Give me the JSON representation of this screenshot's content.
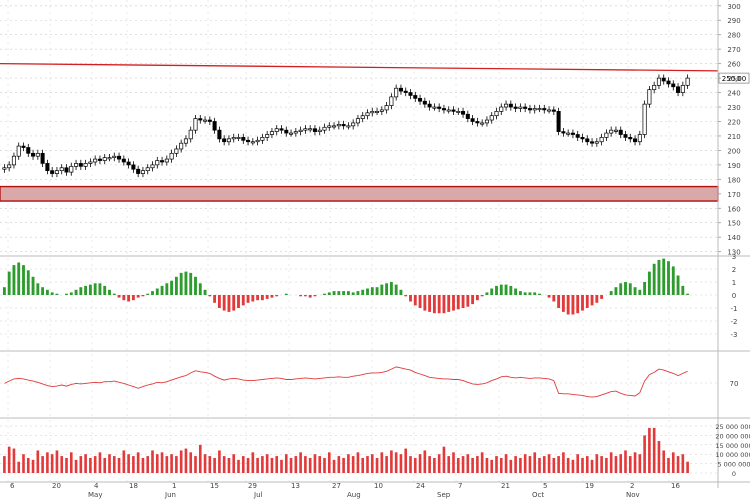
{
  "chart_data": [
    {
      "type": "candlestick",
      "title": "",
      "y_axis_ticks": [
        130,
        140,
        150,
        160,
        170,
        180,
        190,
        200,
        210,
        220,
        230,
        240,
        250,
        260,
        270,
        280,
        290,
        300
      ],
      "ylim": [
        127,
        304
      ],
      "last_price_label": "250,00",
      "resistance_level": {
        "start": 260,
        "end": 255
      },
      "support_zone": [
        165,
        175
      ],
      "grid": "dotted",
      "close": [
        188,
        190,
        196,
        203,
        202,
        198,
        196,
        198,
        191,
        186,
        184,
        186,
        188,
        185,
        189,
        191,
        189,
        191,
        192,
        194,
        193,
        195,
        195,
        196,
        194,
        192,
        190,
        187,
        184,
        186,
        188,
        190,
        193,
        192,
        194,
        198,
        201,
        205,
        208,
        214,
        222,
        221,
        221,
        220,
        214,
        208,
        206,
        208,
        209,
        209,
        207,
        206,
        206,
        207,
        209,
        211,
        213,
        215,
        214,
        212,
        212,
        213,
        214,
        215,
        215,
        213,
        214,
        216,
        217,
        217,
        218,
        217,
        217,
        219,
        222,
        224,
        226,
        227,
        227,
        228,
        231,
        237,
        243,
        241,
        240,
        238,
        236,
        234,
        232,
        230,
        230,
        229,
        228,
        228,
        227,
        227,
        225,
        222,
        220,
        219,
        219,
        221,
        224,
        227,
        230,
        232,
        230,
        229,
        230,
        229,
        228,
        229,
        229,
        228,
        228,
        227,
        213,
        212,
        212,
        211,
        209,
        208,
        206,
        205,
        206,
        209,
        212,
        214,
        214,
        211,
        209,
        208,
        206,
        211,
        232,
        242,
        245,
        250,
        248,
        246,
        244,
        240,
        245,
        250
      ]
    },
    {
      "type": "histogram",
      "y_axis_ticks": [
        "3",
        "2",
        "1",
        "0",
        "-1",
        "-2",
        "-3"
      ],
      "ylim": [
        -3.3,
        3.3
      ],
      "colors": {
        "positive": "#2e9b2e",
        "negative": "#e23a3a"
      },
      "values": [
        0.6,
        1.8,
        2.3,
        2.5,
        2.3,
        1.9,
        1.4,
        0.9,
        0.6,
        0.4,
        0.2,
        0.1,
        0.0,
        0.1,
        0.2,
        0.4,
        0.6,
        0.7,
        0.8,
        0.9,
        0.9,
        0.7,
        0.4,
        0.1,
        -0.2,
        -0.4,
        -0.5,
        -0.4,
        -0.2,
        -0.1,
        0.1,
        0.3,
        0.5,
        0.7,
        0.9,
        1.1,
        1.4,
        1.7,
        1.8,
        1.7,
        1.4,
        0.9,
        0.4,
        -0.1,
        -0.6,
        -1.0,
        -1.2,
        -1.3,
        -1.2,
        -1.0,
        -0.8,
        -0.6,
        -0.5,
        -0.4,
        -0.4,
        -0.3,
        -0.2,
        -0.1,
        0.0,
        0.1,
        0.0,
        0.0,
        -0.1,
        -0.1,
        -0.2,
        -0.1,
        0.0,
        0.1,
        0.2,
        0.3,
        0.3,
        0.3,
        0.3,
        0.2,
        0.3,
        0.4,
        0.5,
        0.6,
        0.6,
        0.8,
        0.9,
        1.0,
        0.8,
        0.4,
        -0.1,
        -0.5,
        -0.8,
        -1.0,
        -1.2,
        -1.3,
        -1.4,
        -1.4,
        -1.4,
        -1.3,
        -1.2,
        -1.1,
        -1.0,
        -0.9,
        -0.7,
        -0.4,
        -0.1,
        0.2,
        0.5,
        0.7,
        0.8,
        0.8,
        0.7,
        0.5,
        0.3,
        0.2,
        0.2,
        0.2,
        0.1,
        0.0,
        -0.2,
        -0.5,
        -1.0,
        -1.3,
        -1.5,
        -1.5,
        -1.4,
        -1.2,
        -1.0,
        -0.8,
        -0.6,
        -0.3,
        0.0,
        0.3,
        0.6,
        0.9,
        1.0,
        0.9,
        0.6,
        0.4,
        1.0,
        1.8,
        2.4,
        2.7,
        2.8,
        2.6,
        2.2,
        1.5,
        0.7,
        0.1
      ]
    },
    {
      "type": "line",
      "y_axis_ticks": [
        "70"
      ],
      "ylim": [
        0,
        100
      ],
      "line_color": "#e23a3a",
      "values": [
        58,
        62,
        66,
        67,
        66,
        64,
        62,
        60,
        57,
        54,
        52,
        53,
        55,
        53,
        56,
        58,
        57,
        58,
        59,
        60,
        59,
        61,
        61,
        62,
        60,
        58,
        55,
        52,
        49,
        52,
        55,
        57,
        60,
        59,
        61,
        64,
        67,
        70,
        72,
        77,
        81,
        79,
        78,
        76,
        71,
        67,
        64,
        66,
        67,
        66,
        64,
        63,
        63,
        64,
        65,
        66,
        67,
        68,
        67,
        65,
        65,
        66,
        67,
        68,
        67,
        66,
        67,
        68,
        69,
        69,
        70,
        69,
        69,
        71,
        72,
        74,
        76,
        77,
        77,
        78,
        80,
        84,
        88,
        86,
        84,
        82,
        78,
        75,
        72,
        69,
        68,
        67,
        66,
        66,
        65,
        65,
        63,
        60,
        57,
        56,
        57,
        59,
        63,
        66,
        70,
        71,
        69,
        68,
        69,
        68,
        67,
        68,
        68,
        67,
        66,
        63,
        40,
        39,
        39,
        38,
        37,
        36,
        34,
        33,
        34,
        37,
        40,
        43,
        44,
        40,
        37,
        36,
        35,
        41,
        62,
        74,
        78,
        84,
        82,
        79,
        76,
        72,
        76,
        80
      ]
    },
    {
      "type": "bar",
      "y_axis_ticks": [
        "25 000 000",
        "20 000 000",
        "15 000 000",
        "10 000 000",
        "5 000 000",
        "0"
      ],
      "ylim": [
        0,
        30000000
      ],
      "bar_color": "#e23a3a",
      "values": [
        9000000,
        14000000,
        13000000,
        6000000,
        10000000,
        8000000,
        7000000,
        12000000,
        9000000,
        11000000,
        10000000,
        12000000,
        9000000,
        8000000,
        11000000,
        7000000,
        9000000,
        10000000,
        8000000,
        9000000,
        11000000,
        8000000,
        10000000,
        9000000,
        8000000,
        12000000,
        10000000,
        9000000,
        11000000,
        8000000,
        9000000,
        12000000,
        10000000,
        11000000,
        9000000,
        10000000,
        9000000,
        12000000,
        13000000,
        11000000,
        9000000,
        15000000,
        10000000,
        9000000,
        8000000,
        12000000,
        9000000,
        8000000,
        10000000,
        7000000,
        9000000,
        8000000,
        11000000,
        8000000,
        9000000,
        10000000,
        8000000,
        9000000,
        7000000,
        10000000,
        8000000,
        9000000,
        11000000,
        9000000,
        8000000,
        10000000,
        9000000,
        8000000,
        11000000,
        7000000,
        9000000,
        8000000,
        10000000,
        9000000,
        11000000,
        8000000,
        9000000,
        10000000,
        8000000,
        11000000,
        9000000,
        12000000,
        11000000,
        10000000,
        13000000,
        9000000,
        8000000,
        10000000,
        12000000,
        9000000,
        8000000,
        10000000,
        14000000,
        9000000,
        11000000,
        8000000,
        9000000,
        10000000,
        8000000,
        9000000,
        11000000,
        8000000,
        7000000,
        9000000,
        8000000,
        10000000,
        7000000,
        9000000,
        8000000,
        10000000,
        9000000,
        11000000,
        8000000,
        9000000,
        10000000,
        8000000,
        9000000,
        11000000,
        8000000,
        7000000,
        10000000,
        8000000,
        9000000,
        7000000,
        10000000,
        9000000,
        8000000,
        11000000,
        9000000,
        10000000,
        12000000,
        9000000,
        11000000,
        10000000,
        20000000,
        24000000,
        24000000,
        17000000,
        12000000,
        8000000,
        11000000,
        9000000,
        10000000,
        6000000
      ]
    }
  ],
  "x_axis": {
    "day_labels": [
      "6",
      "20",
      "4",
      "18",
      "1",
      "15",
      "29",
      "13",
      "27",
      "10",
      "24",
      "7",
      "21",
      "5",
      "19",
      "2",
      "16"
    ],
    "month_labels": [
      "May",
      "Jun",
      "Jul",
      "Aug",
      "Sep",
      "Oct",
      "Nov"
    ]
  },
  "colors": {
    "resistance_line": "#d31f1f",
    "support_fill": "#d9a9aa",
    "support_border": "#b01010",
    "candle": "#000000",
    "grid": "#cccccc"
  }
}
